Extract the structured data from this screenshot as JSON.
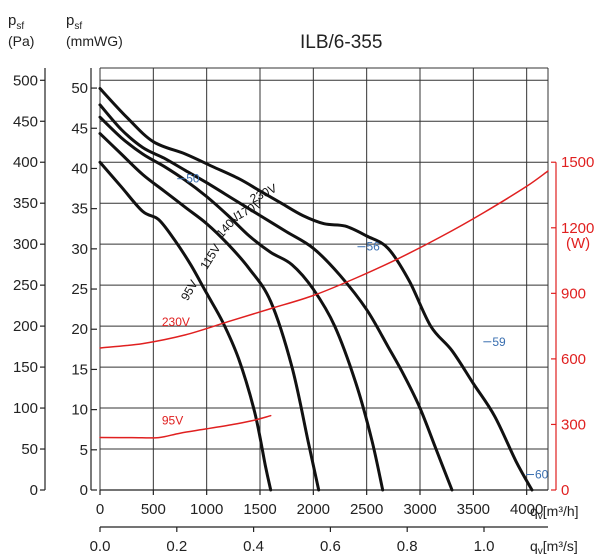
{
  "chart_data": {
    "type": "line",
    "title": "ILB/6-355",
    "y_left_pa_label_main": "p",
    "y_left_pa_label_sub": "sf",
    "y_left_pa_unit": "(Pa)",
    "y_left_mm_label_main": "p",
    "y_left_mm_label_sub": "sf",
    "y_left_mm_unit": "(mmWG)",
    "y_right_label": "(W)",
    "x_m3h_label": "q",
    "x_m3h_sub": "v",
    "x_m3h_unit": "[m³/h]",
    "x_m3s_label": "q",
    "x_m3s_sub": "v",
    "x_m3s_unit": "[m³/s]",
    "xlim": [
      0,
      4200
    ],
    "ylim_pa": [
      0,
      500
    ],
    "ylim_mmwg": [
      0,
      50
    ],
    "ylim_w": [
      0,
      1500
    ],
    "grid": true,
    "x_ticks_m3h": [
      "0",
      "500",
      "1000",
      "1500",
      "2000",
      "2500",
      "3000",
      "3500",
      "4000"
    ],
    "x_ticks_m3s": [
      "0.0",
      "0.2",
      "0.4",
      "0.6",
      "0.8",
      "1.0"
    ],
    "y_ticks_pa": [
      "0",
      "50",
      "100",
      "150",
      "200",
      "250",
      "300",
      "350",
      "400",
      "450",
      "500"
    ],
    "y_ticks_mmwg": [
      "0",
      "5",
      "10",
      "15",
      "20",
      "25",
      "30",
      "35",
      "40",
      "45",
      "50"
    ],
    "y_ticks_w": [
      "0",
      "300",
      "600",
      "900",
      "1200",
      "1500"
    ],
    "series": [
      {
        "name": "230V",
        "axis": "pressure",
        "x": [
          0,
          250,
          500,
          800,
          1050,
          1300,
          1500,
          1700,
          1900,
          2100,
          2300,
          2500,
          2700,
          2900,
          3100,
          3300,
          3500,
          3700,
          3900,
          4050
        ],
        "y": [
          490,
          455,
          425,
          410,
          395,
          380,
          365,
          350,
          335,
          325,
          322,
          310,
          295,
          255,
          200,
          170,
          130,
          90,
          35,
          0
        ]
      },
      {
        "name": "170V",
        "axis": "pressure",
        "x": [
          0,
          200,
          400,
          600,
          800,
          1000,
          1250,
          1500,
          1750,
          2000,
          2250,
          2500,
          2700,
          2850,
          3000,
          3150,
          3300
        ],
        "y": [
          470,
          440,
          418,
          405,
          390,
          375,
          355,
          335,
          315,
          295,
          262,
          220,
          175,
          140,
          100,
          50,
          0
        ]
      },
      {
        "name": "140V",
        "axis": "pressure",
        "x": [
          0,
          200,
          400,
          600,
          800,
          1000,
          1200,
          1400,
          1600,
          1800,
          2000,
          2200,
          2400,
          2550,
          2650
        ],
        "y": [
          455,
          430,
          410,
          395,
          378,
          358,
          335,
          310,
          290,
          275,
          245,
          200,
          130,
          60,
          0
        ]
      },
      {
        "name": "115V",
        "axis": "pressure",
        "x": [
          0,
          200,
          400,
          600,
          800,
          1000,
          1200,
          1400,
          1600,
          1800,
          1950,
          2050
        ],
        "y": [
          435,
          410,
          385,
          365,
          345,
          325,
          300,
          270,
          230,
          150,
          60,
          0
        ]
      },
      {
        "name": "95V",
        "axis": "pressure",
        "x": [
          0,
          200,
          400,
          550,
          700,
          850,
          1000,
          1150,
          1300,
          1450,
          1550,
          1600
        ],
        "y": [
          400,
          370,
          340,
          330,
          305,
          275,
          240,
          205,
          160,
          95,
          30,
          0
        ]
      },
      {
        "name": "230V",
        "axis": "power",
        "x": [
          0,
          400,
          800,
          1200,
          1600,
          2000,
          2400,
          2800,
          3200,
          3600,
          4000,
          4200
        ],
        "y": [
          650,
          670,
          710,
          770,
          830,
          890,
          970,
          1060,
          1160,
          1270,
          1390,
          1460
        ]
      },
      {
        "name": "95V",
        "axis": "power",
        "x": [
          0,
          300,
          550,
          750,
          1000,
          1250,
          1450,
          1600
        ],
        "y": [
          240,
          240,
          240,
          260,
          280,
          300,
          320,
          340
        ]
      }
    ],
    "efficiency_labels": [
      {
        "text": "50",
        "x": 780,
        "y": 375
      },
      {
        "text": "56",
        "x": 2470,
        "y": 292
      },
      {
        "text": "59",
        "x": 3650,
        "y": 176
      },
      {
        "text": "60",
        "x": 4050,
        "y": 14
      }
    ]
  }
}
